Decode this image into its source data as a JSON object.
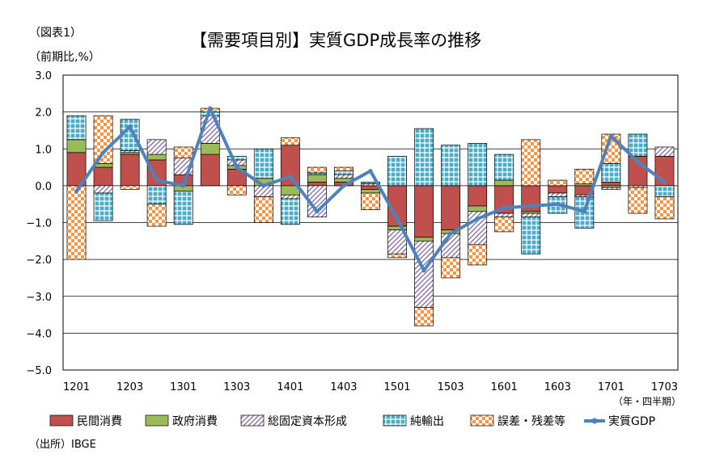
{
  "figure_label": "（図表1）",
  "unit_label": "（前期比,%）",
  "period_label": "（年・四半期）",
  "source_label": "（出所）IBGE",
  "chart_data": {
    "type": "bar",
    "stacked": true,
    "title": "【需要項目別】実質GDP成長率の推移",
    "ylim": [
      -5.0,
      3.0
    ],
    "yticks": [
      "3.0",
      "2.0",
      "1.0",
      "0.0",
      "−1.0",
      "−2.0",
      "−3.0",
      "−4.0",
      "−5.0"
    ],
    "categories": [
      "1201",
      "1202",
      "1203",
      "1204",
      "1301",
      "1302",
      "1303",
      "1304",
      "1401",
      "1402",
      "1403",
      "1404",
      "1501",
      "1502",
      "1503",
      "1504",
      "1601",
      "1602",
      "1603",
      "1604",
      "1701",
      "1702",
      "1703"
    ],
    "x_tick_labels": [
      "1201",
      "",
      "1203",
      "",
      "1301",
      "",
      "1303",
      "",
      "1401",
      "",
      "1403",
      "",
      "1501",
      "",
      "1503",
      "",
      "1601",
      "",
      "1603",
      "",
      "1701",
      "",
      "1703"
    ],
    "grid": true,
    "legend": "bottom",
    "series": [
      {
        "name": "民間消費",
        "kind": "bar",
        "color": "#c0504d",
        "pattern": "solid",
        "values": [
          0.9,
          0.5,
          0.85,
          0.7,
          0.3,
          0.85,
          0.45,
          0.0,
          1.1,
          0.1,
          0.1,
          -0.1,
          -1.1,
          -1.4,
          -1.2,
          -0.55,
          -0.75,
          -0.7,
          -0.2,
          -0.25,
          0.1,
          0.8,
          0.8
        ]
      },
      {
        "name": "政府消費",
        "kind": "bar",
        "color": "#9bbb59",
        "pattern": "solid",
        "values": [
          0.35,
          0.1,
          0.05,
          0.15,
          -0.15,
          0.3,
          0.1,
          0.2,
          -0.25,
          0.2,
          0.1,
          -0.1,
          -0.1,
          -0.1,
          -0.1,
          -0.15,
          0.15,
          -0.05,
          0.0,
          0.05,
          -0.05,
          0.0,
          0.0
        ]
      },
      {
        "name": "総固定資本形成",
        "kind": "bar",
        "color": "#8064a2",
        "pattern": "hatch",
        "values": [
          0.0,
          -0.2,
          0.05,
          0.4,
          0.45,
          0.75,
          0.15,
          -0.3,
          -0.1,
          -0.85,
          0.1,
          0.05,
          -0.65,
          -1.8,
          -0.65,
          -0.9,
          -0.1,
          -0.1,
          -0.1,
          -0.05,
          -0.05,
          -0.05,
          0.25
        ]
      },
      {
        "name": "純輸出",
        "kind": "bar",
        "color": "#4bacc6",
        "pattern": "grid",
        "values": [
          0.65,
          -0.75,
          0.85,
          -0.5,
          -0.9,
          0.1,
          0.1,
          0.8,
          -0.7,
          0.05,
          0.1,
          0.05,
          0.8,
          1.55,
          1.1,
          1.15,
          0.7,
          -1.0,
          -0.45,
          -0.85,
          0.5,
          0.6,
          -0.3
        ]
      },
      {
        "name": "誤差・残差等",
        "kind": "bar",
        "color": "#f79646",
        "pattern": "checker",
        "values": [
          -2.0,
          1.3,
          -0.1,
          -0.6,
          0.3,
          0.1,
          -0.25,
          -0.7,
          0.2,
          0.15,
          0.1,
          -0.45,
          -0.1,
          -0.5,
          -0.55,
          -0.55,
          -0.4,
          1.25,
          0.15,
          0.4,
          0.8,
          -0.7,
          -0.6
        ]
      },
      {
        "name": "実質GDP",
        "kind": "line",
        "color": "#4f81bd",
        "values": [
          -0.15,
          0.9,
          1.6,
          0.15,
          0.0,
          2.1,
          0.5,
          0.0,
          0.25,
          -0.7,
          0.0,
          0.4,
          -0.9,
          -2.3,
          -1.3,
          -0.9,
          -0.6,
          -0.55,
          -0.5,
          -0.7,
          1.35,
          0.65,
          0.1
        ]
      }
    ]
  }
}
